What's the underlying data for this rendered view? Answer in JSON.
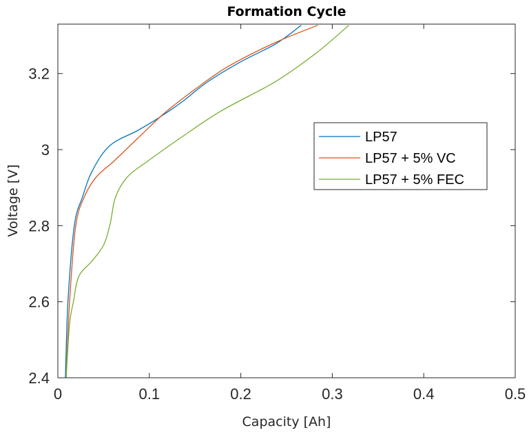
{
  "chart_data": {
    "type": "line",
    "title": "Formation Cycle",
    "xlabel": "Capacity [Ah]",
    "ylabel": "Voltage [V]",
    "xlim": [
      0,
      0.5
    ],
    "ylim": [
      2.4,
      3.33
    ],
    "xticks": [
      0,
      0.1,
      0.2,
      0.3,
      0.4,
      0.5
    ],
    "xtick_labels": [
      "0",
      "0.1",
      "0.2",
      "0.3",
      "0.4",
      "0.5"
    ],
    "yticks": [
      2.4,
      2.6,
      2.8,
      3.0,
      3.2
    ],
    "ytick_labels": [
      "2.4",
      "2.6",
      "2.8",
      "3",
      "3.2"
    ],
    "grid": false,
    "legend_position": "right",
    "series": [
      {
        "name": "LP57",
        "color": "#0072BD",
        "x": [
          0.0083,
          0.011,
          0.018,
          0.027,
          0.038,
          0.057,
          0.087,
          0.11,
          0.136,
          0.163,
          0.2,
          0.238,
          0.266
        ],
        "y": [
          2.4,
          2.6,
          2.8,
          2.876,
          2.946,
          3.011,
          3.05,
          3.083,
          3.126,
          3.177,
          3.231,
          3.278,
          3.327
        ]
      },
      {
        "name": "LP57 + 5% VC",
        "color": "#D95319",
        "x": [
          0.009,
          0.0128,
          0.0196,
          0.029,
          0.042,
          0.061,
          0.087,
          0.117,
          0.148,
          0.185,
          0.238,
          0.284
        ],
        "y": [
          2.4,
          2.6,
          2.8,
          2.876,
          2.928,
          2.969,
          3.029,
          3.097,
          3.155,
          3.217,
          3.282,
          3.327
        ]
      },
      {
        "name": "LP57 + 5% FEC",
        "color": "#77AC30",
        "x": [
          0.009,
          0.0128,
          0.017,
          0.023,
          0.038,
          0.05,
          0.057,
          0.063,
          0.076,
          0.099,
          0.133,
          0.178,
          0.238,
          0.283,
          0.318
        ],
        "y": [
          2.4,
          2.541,
          2.6,
          2.667,
          2.709,
          2.749,
          2.803,
          2.875,
          2.928,
          2.971,
          3.029,
          3.101,
          3.179,
          3.255,
          3.327
        ]
      }
    ]
  }
}
